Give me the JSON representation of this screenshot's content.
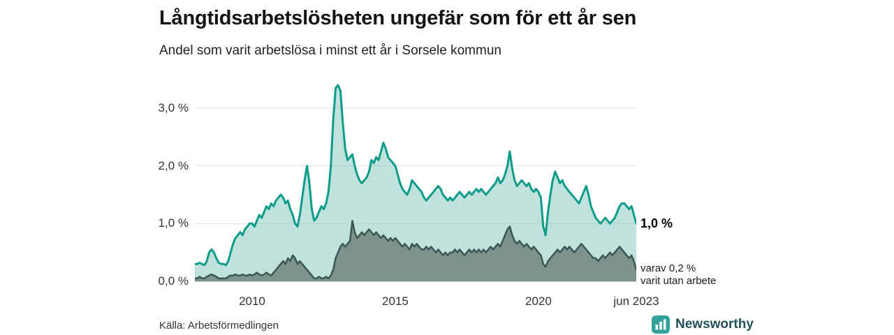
{
  "page": {
    "title": "Långtidsarbetslösheten ungefär som för ett år sen",
    "subtitle": "Andel som varit arbetslösa i minst ett år i Sorsele kommun"
  },
  "annotations": {
    "end_value_total": "1,0 %",
    "end_value_sub_line1": "varav 0,2 %",
    "end_value_sub_line2": "varit utan arbete"
  },
  "footer": {
    "source": "Källa: Arbetsförmedlingen",
    "brand": "Newsworthy"
  },
  "icons": {
    "brand": "bar-chart-icon"
  },
  "colors": {
    "accent_teal": "#0d9b8a",
    "light_fill": "#8bcac1",
    "dark_line": "#3c5751",
    "dark_fill": "#6c8079",
    "grid": "#e0e0e0",
    "baseline": "#b3b3b3",
    "brand_teal": "#31a39a",
    "brand_text": "#24505a"
  },
  "chart_data": {
    "type": "area",
    "title": "Långtidsarbetslösheten ungefär som för ett år sen",
    "subtitle": "Andel som varit arbetslösa i minst ett år i Sorsele kommun",
    "unit": "%",
    "frequency": "monthly",
    "x_start": "2008-01",
    "x_end": "2023-06",
    "ylim": [
      0,
      3.55
    ],
    "grid": "horizontal",
    "legend_position": "none",
    "gridlines": [
      1,
      2,
      3
    ],
    "yticks": [
      {
        "value": 3,
        "label": "3,0 %"
      },
      {
        "value": 2,
        "label": "2,0 %"
      },
      {
        "value": 1,
        "label": "1,0 %"
      },
      {
        "value": 0,
        "label": "0,0 %"
      }
    ],
    "xticks": [
      {
        "index": 24,
        "label": "2010"
      },
      {
        "index": 84,
        "label": "2015"
      },
      {
        "index": 144,
        "label": "2020"
      },
      {
        "index": 185,
        "label": "jun 2023"
      }
    ],
    "series": [
      {
        "name": "Andel som varit arbetslösa i minst ett år",
        "end_label": "1,0 %",
        "line_color": "#0d9b8a",
        "line_width": 3,
        "fill_color": "#8bcac1",
        "fill_opacity": 0.55,
        "values": [
          0.3,
          0.3,
          0.32,
          0.3,
          0.28,
          0.35,
          0.5,
          0.55,
          0.5,
          0.4,
          0.32,
          0.3,
          0.3,
          0.28,
          0.35,
          0.5,
          0.65,
          0.75,
          0.8,
          0.85,
          0.8,
          0.9,
          0.95,
          1.0,
          1.0,
          0.95,
          1.05,
          1.15,
          1.1,
          1.2,
          1.3,
          1.25,
          1.35,
          1.3,
          1.4,
          1.45,
          1.5,
          1.45,
          1.35,
          1.4,
          1.25,
          1.15,
          1.0,
          0.95,
          1.15,
          1.45,
          1.75,
          2.0,
          1.7,
          1.25,
          1.05,
          1.1,
          1.2,
          1.3,
          1.25,
          1.35,
          1.55,
          2.0,
          2.8,
          3.35,
          3.4,
          3.3,
          2.75,
          2.3,
          2.1,
          2.15,
          2.2,
          2.0,
          1.85,
          1.75,
          1.7,
          1.75,
          1.8,
          1.9,
          2.1,
          2.05,
          2.15,
          2.1,
          2.25,
          2.4,
          2.3,
          2.15,
          2.1,
          2.05,
          2.0,
          1.85,
          1.7,
          1.6,
          1.55,
          1.5,
          1.6,
          1.75,
          1.7,
          1.65,
          1.6,
          1.55,
          1.45,
          1.4,
          1.45,
          1.5,
          1.55,
          1.6,
          1.65,
          1.6,
          1.5,
          1.45,
          1.4,
          1.45,
          1.4,
          1.45,
          1.5,
          1.55,
          1.5,
          1.45,
          1.5,
          1.55,
          1.5,
          1.55,
          1.6,
          1.55,
          1.6,
          1.55,
          1.5,
          1.55,
          1.6,
          1.65,
          1.7,
          1.8,
          1.7,
          1.75,
          1.85,
          2.0,
          2.25,
          1.95,
          1.75,
          1.65,
          1.7,
          1.75,
          1.7,
          1.65,
          1.7,
          1.6,
          1.55,
          1.6,
          1.55,
          1.45,
          0.95,
          0.8,
          1.2,
          1.5,
          1.75,
          1.9,
          1.8,
          1.7,
          1.75,
          1.65,
          1.6,
          1.55,
          1.5,
          1.45,
          1.4,
          1.35,
          1.45,
          1.55,
          1.65,
          1.5,
          1.3,
          1.2,
          1.1,
          1.05,
          1.0,
          1.05,
          1.1,
          1.05,
          1.0,
          1.05,
          1.1,
          1.2,
          1.3,
          1.35,
          1.35,
          1.3,
          1.25,
          1.3,
          1.15,
          1.0
        ]
      },
      {
        "name": "varav varit utan arbete",
        "end_label": "0,2 %",
        "line_color": "#3c5751",
        "line_width": 2.5,
        "fill_color": "#6c8079",
        "fill_opacity": 0.8,
        "values": [
          0.05,
          0.05,
          0.08,
          0.05,
          0.05,
          0.08,
          0.1,
          0.12,
          0.1,
          0.08,
          0.05,
          0.05,
          0.05,
          0.05,
          0.08,
          0.1,
          0.1,
          0.12,
          0.1,
          0.1,
          0.12,
          0.1,
          0.1,
          0.12,
          0.1,
          0.12,
          0.15,
          0.12,
          0.1,
          0.12,
          0.15,
          0.12,
          0.1,
          0.15,
          0.2,
          0.25,
          0.3,
          0.35,
          0.3,
          0.4,
          0.35,
          0.45,
          0.4,
          0.3,
          0.35,
          0.3,
          0.25,
          0.2,
          0.15,
          0.1,
          0.05,
          0.05,
          0.08,
          0.05,
          0.05,
          0.08,
          0.05,
          0.1,
          0.2,
          0.4,
          0.5,
          0.6,
          0.65,
          0.6,
          0.65,
          0.7,
          1.05,
          0.85,
          0.75,
          0.8,
          0.85,
          0.8,
          0.85,
          0.9,
          0.85,
          0.8,
          0.85,
          0.8,
          0.75,
          0.8,
          0.75,
          0.7,
          0.75,
          0.7,
          0.75,
          0.7,
          0.65,
          0.6,
          0.65,
          0.6,
          0.55,
          0.65,
          0.6,
          0.65,
          0.6,
          0.55,
          0.55,
          0.6,
          0.55,
          0.6,
          0.55,
          0.5,
          0.55,
          0.5,
          0.45,
          0.5,
          0.45,
          0.5,
          0.5,
          0.55,
          0.5,
          0.55,
          0.5,
          0.45,
          0.5,
          0.55,
          0.5,
          0.55,
          0.5,
          0.55,
          0.5,
          0.55,
          0.5,
          0.55,
          0.6,
          0.55,
          0.6,
          0.65,
          0.6,
          0.7,
          0.8,
          0.9,
          0.95,
          0.8,
          0.7,
          0.65,
          0.7,
          0.65,
          0.6,
          0.65,
          0.6,
          0.55,
          0.6,
          0.55,
          0.5,
          0.45,
          0.3,
          0.25,
          0.35,
          0.4,
          0.45,
          0.5,
          0.55,
          0.5,
          0.55,
          0.6,
          0.55,
          0.6,
          0.55,
          0.5,
          0.55,
          0.6,
          0.65,
          0.6,
          0.55,
          0.5,
          0.45,
          0.4,
          0.4,
          0.35,
          0.4,
          0.45,
          0.4,
          0.45,
          0.5,
          0.45,
          0.5,
          0.55,
          0.6,
          0.55,
          0.5,
          0.45,
          0.4,
          0.45,
          0.35,
          0.2
        ]
      }
    ]
  }
}
